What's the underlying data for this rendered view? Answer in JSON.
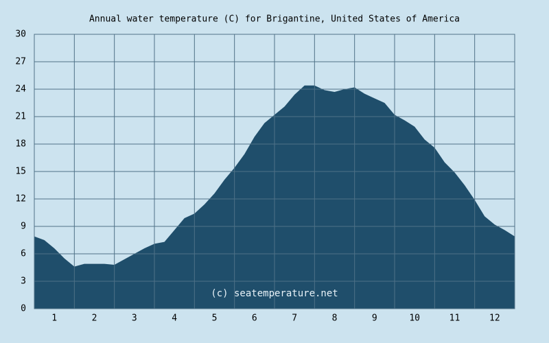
{
  "chart_data": {
    "type": "area",
    "title": "Annual water temperature (C) for Brigantine, United States of America",
    "annotation": "(c) seatemperature.net",
    "x": [
      0.5,
      0.75,
      1,
      1.25,
      1.5,
      1.75,
      2,
      2.25,
      2.5,
      2.75,
      3,
      3.25,
      3.5,
      3.75,
      4,
      4.25,
      4.5,
      4.75,
      5,
      5.25,
      5.5,
      5.75,
      6,
      6.25,
      6.5,
      6.75,
      7,
      7.25,
      7.5,
      7.75,
      8,
      8.25,
      8.5,
      8.75,
      9,
      9.25,
      9.5,
      9.75,
      10,
      10.25,
      10.5,
      10.75,
      11,
      11.25,
      11.5,
      11.75,
      12,
      12.25,
      12.5
    ],
    "values": [
      7.9,
      7.5,
      6.6,
      5.5,
      4.6,
      4.9,
      4.9,
      4.9,
      4.8,
      5.4,
      6.0,
      6.6,
      7.1,
      7.3,
      8.6,
      9.9,
      10.4,
      11.4,
      12.6,
      14.1,
      15.4,
      16.9,
      18.8,
      20.3,
      21.2,
      22.1,
      23.4,
      24.4,
      24.4,
      23.9,
      23.7,
      24.0,
      24.2,
      23.5,
      23.0,
      22.5,
      21.2,
      20.6,
      19.9,
      18.5,
      17.6,
      16.0,
      14.9,
      13.5,
      11.9,
      10.1,
      9.2,
      8.6,
      7.9
    ],
    "color": "#1f4e6b",
    "xlim": [
      0.5,
      12.5
    ],
    "xticks": [
      1,
      2,
      3,
      4,
      5,
      6,
      7,
      8,
      9,
      10,
      11,
      12
    ],
    "ylim": [
      0,
      30
    ],
    "yticks": [
      0,
      3,
      6,
      9,
      12,
      15,
      18,
      21,
      24,
      27,
      30
    ],
    "grid": true
  }
}
